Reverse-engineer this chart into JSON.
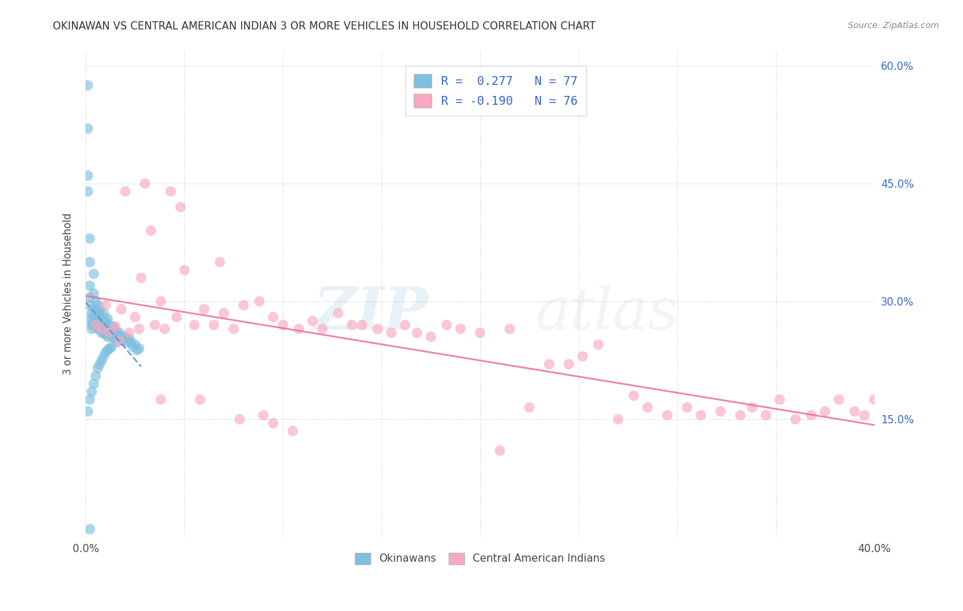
{
  "title": "OKINAWAN VS CENTRAL AMERICAN INDIAN 3 OR MORE VEHICLES IN HOUSEHOLD CORRELATION CHART",
  "source": "Source: ZipAtlas.com",
  "ylabel": "3 or more Vehicles in Household",
  "legend_label_1": "Okinawans",
  "legend_label_2": "Central American Indians",
  "R1": 0.277,
  "N1": 77,
  "R2": -0.19,
  "N2": 76,
  "color1": "#7fbfdf",
  "color2": "#f9a8c0",
  "trendline1_color": "#5599cc",
  "trendline2_color": "#e87090",
  "background_color": "#ffffff",
  "grid_color": "#cccccc",
  "xlim": [
    0.0,
    0.4
  ],
  "ylim": [
    0.0,
    0.62
  ],
  "okinawan_x": [
    0.001,
    0.001,
    0.001,
    0.001,
    0.002,
    0.002,
    0.002,
    0.002,
    0.002,
    0.003,
    0.003,
    0.003,
    0.003,
    0.003,
    0.004,
    0.004,
    0.004,
    0.004,
    0.005,
    0.005,
    0.005,
    0.005,
    0.006,
    0.006,
    0.006,
    0.006,
    0.007,
    0.007,
    0.007,
    0.007,
    0.008,
    0.008,
    0.008,
    0.009,
    0.009,
    0.009,
    0.01,
    0.01,
    0.01,
    0.011,
    0.011,
    0.011,
    0.012,
    0.012,
    0.013,
    0.013,
    0.014,
    0.014,
    0.015,
    0.015,
    0.016,
    0.016,
    0.017,
    0.018,
    0.019,
    0.02,
    0.021,
    0.022,
    0.023,
    0.024,
    0.025,
    0.026,
    0.027,
    0.001,
    0.002,
    0.003,
    0.004,
    0.005,
    0.006,
    0.007,
    0.008,
    0.009,
    0.01,
    0.011,
    0.012,
    0.013,
    0.002
  ],
  "okinawan_y": [
    0.575,
    0.52,
    0.46,
    0.44,
    0.38,
    0.35,
    0.32,
    0.305,
    0.295,
    0.285,
    0.28,
    0.275,
    0.27,
    0.265,
    0.335,
    0.31,
    0.29,
    0.27,
    0.3,
    0.29,
    0.28,
    0.27,
    0.295,
    0.285,
    0.278,
    0.265,
    0.29,
    0.285,
    0.278,
    0.265,
    0.28,
    0.27,
    0.26,
    0.285,
    0.275,
    0.26,
    0.275,
    0.268,
    0.258,
    0.278,
    0.268,
    0.255,
    0.27,
    0.26,
    0.265,
    0.255,
    0.268,
    0.258,
    0.262,
    0.252,
    0.258,
    0.248,
    0.26,
    0.255,
    0.25,
    0.255,
    0.248,
    0.252,
    0.248,
    0.242,
    0.245,
    0.238,
    0.24,
    0.16,
    0.175,
    0.185,
    0.195,
    0.205,
    0.215,
    0.22,
    0.225,
    0.23,
    0.235,
    0.238,
    0.24,
    0.242,
    0.01
  ],
  "central_american_x": [
    0.005,
    0.008,
    0.01,
    0.012,
    0.015,
    0.017,
    0.02,
    0.022,
    0.025,
    0.027,
    0.03,
    0.033,
    0.035,
    0.038,
    0.04,
    0.043,
    0.046,
    0.05,
    0.055,
    0.06,
    0.065,
    0.07,
    0.075,
    0.08,
    0.088,
    0.095,
    0.1,
    0.108,
    0.115,
    0.12,
    0.128,
    0.135,
    0.14,
    0.148,
    0.155,
    0.162,
    0.168,
    0.175,
    0.183,
    0.19,
    0.2,
    0.21,
    0.215,
    0.225,
    0.235,
    0.245,
    0.252,
    0.26,
    0.27,
    0.278,
    0.285,
    0.295,
    0.305,
    0.312,
    0.322,
    0.332,
    0.338,
    0.345,
    0.352,
    0.36,
    0.368,
    0.375,
    0.382,
    0.39,
    0.395,
    0.4,
    0.018,
    0.028,
    0.038,
    0.048,
    0.058,
    0.068,
    0.078,
    0.09,
    0.095,
    0.105
  ],
  "central_american_y": [
    0.27,
    0.265,
    0.295,
    0.26,
    0.268,
    0.25,
    0.44,
    0.26,
    0.28,
    0.265,
    0.45,
    0.39,
    0.27,
    0.3,
    0.265,
    0.44,
    0.28,
    0.34,
    0.27,
    0.29,
    0.27,
    0.285,
    0.265,
    0.295,
    0.3,
    0.28,
    0.27,
    0.265,
    0.275,
    0.265,
    0.285,
    0.27,
    0.27,
    0.265,
    0.26,
    0.27,
    0.26,
    0.255,
    0.27,
    0.265,
    0.26,
    0.11,
    0.265,
    0.165,
    0.22,
    0.22,
    0.23,
    0.245,
    0.15,
    0.18,
    0.165,
    0.155,
    0.165,
    0.155,
    0.16,
    0.155,
    0.165,
    0.155,
    0.175,
    0.15,
    0.155,
    0.16,
    0.175,
    0.16,
    0.155,
    0.175,
    0.29,
    0.33,
    0.175,
    0.42,
    0.175,
    0.35,
    0.15,
    0.155,
    0.145,
    0.135
  ]
}
